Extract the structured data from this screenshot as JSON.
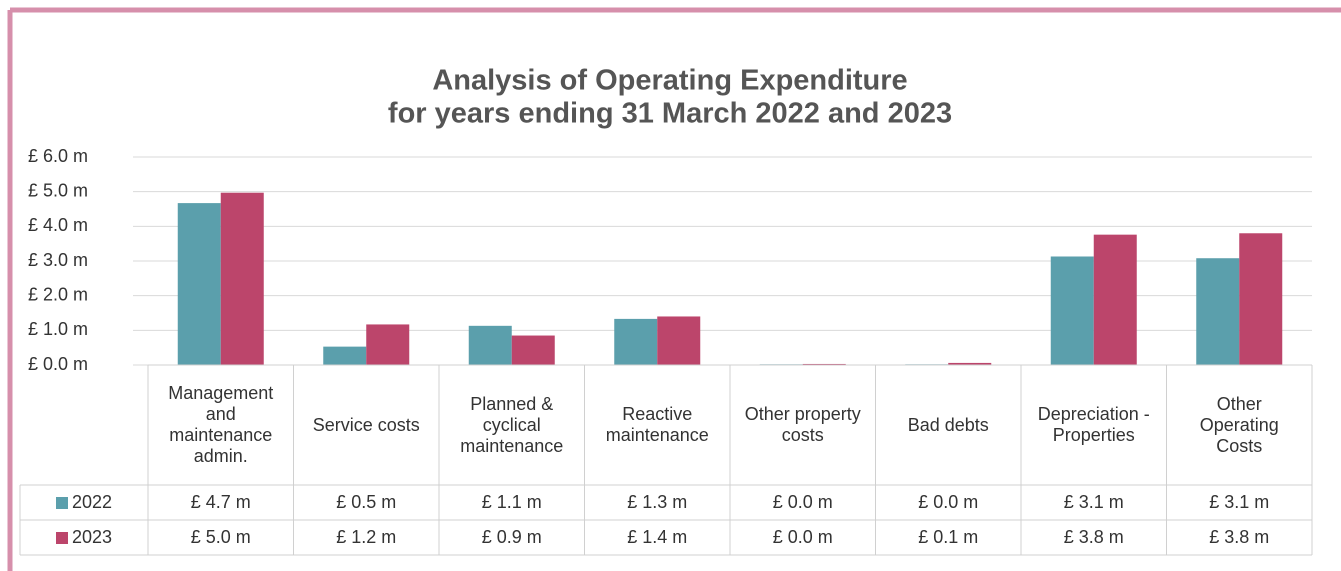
{
  "chart_data": {
    "type": "bar",
    "title": "Analysis of Operating Expenditure",
    "subtitle": "for years ending 31 March 2022 and 2023",
    "categories": [
      "Management and maintenance admin.",
      "Service costs",
      "Planned & cyclical maintenance",
      "Reactive maintenance",
      "Other property costs",
      "Bad debts",
      "Depreciation - Properties",
      "Other Operating Costs"
    ],
    "series": [
      {
        "name": "2022",
        "color": "#5b9fac",
        "values": [
          4.67,
          0.53,
          1.13,
          1.33,
          0.02,
          0.02,
          3.13,
          3.08
        ],
        "value_labels": [
          "£ 4.7 m",
          "£ 0.5 m",
          "£ 1.1 m",
          "£ 1.3 m",
          "£ 0.0 m",
          "£ 0.0 m",
          "£ 3.1 m",
          "£ 3.1 m"
        ]
      },
      {
        "name": "2023",
        "color": "#bc456b",
        "values": [
          4.97,
          1.17,
          0.85,
          1.4,
          0.03,
          0.06,
          3.76,
          3.8
        ],
        "value_labels": [
          "£ 5.0 m",
          "£ 1.2 m",
          "£ 0.9 m",
          "£ 1.4 m",
          "£ 0.0 m",
          "£ 0.1 m",
          "£ 3.8 m",
          "£ 3.8 m"
        ]
      }
    ],
    "ylim": [
      0,
      6
    ],
    "yticks": [
      {
        "value": 0,
        "label": "£ 0.0 m"
      },
      {
        "value": 1,
        "label": "£ 1.0 m"
      },
      {
        "value": 2,
        "label": "£ 2.0 m"
      },
      {
        "value": 3,
        "label": "£ 3.0 m"
      },
      {
        "value": 4,
        "label": "£ 4.0 m"
      },
      {
        "value": 5,
        "label": "£ 5.0 m"
      },
      {
        "value": 6,
        "label": "£ 6.0 m"
      }
    ],
    "grid": true
  }
}
